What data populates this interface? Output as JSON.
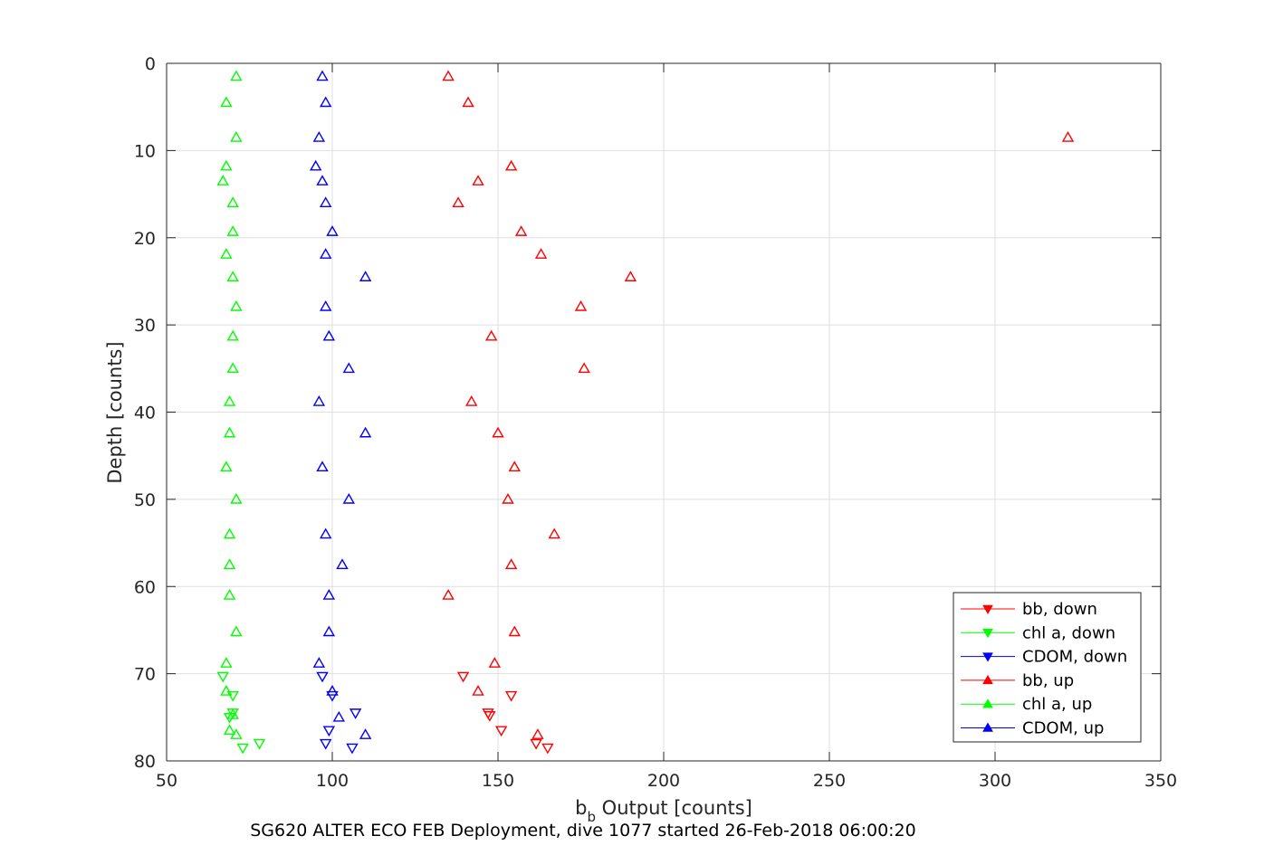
{
  "chart_data": {
    "type": "scatter",
    "xlabel_main": "b",
    "xlabel_sub": "b",
    "xlabel_rest": " Output [counts]",
    "ylabel": "Depth [counts]",
    "caption": "SG620 ALTER ECO FEB Deployment, dive 1077 started 26-Feb-2018 06:00:20",
    "xlim": [
      50,
      350
    ],
    "ylim": [
      0,
      80
    ],
    "y_reversed": true,
    "grid": true,
    "legend_position": "bottom-right",
    "x_ticks": [
      {
        "value": 50,
        "label": "50"
      },
      {
        "value": 100,
        "label": "100"
      },
      {
        "value": 150,
        "label": "150"
      },
      {
        "value": 200,
        "label": "200"
      },
      {
        "value": 250,
        "label": "250"
      },
      {
        "value": 300,
        "label": "300"
      },
      {
        "value": 350,
        "label": "350"
      }
    ],
    "y_ticks": [
      {
        "value": 0,
        "label": "0"
      },
      {
        "value": 10,
        "label": "10"
      },
      {
        "value": 20,
        "label": "20"
      },
      {
        "value": 30,
        "label": "30"
      },
      {
        "value": 40,
        "label": "40"
      },
      {
        "value": 50,
        "label": "50"
      },
      {
        "value": 60,
        "label": "60"
      },
      {
        "value": 70,
        "label": "70"
      },
      {
        "value": 80,
        "label": "80"
      }
    ],
    "series": [
      {
        "name": "bb, down",
        "color": "#ff0000",
        "marker": "triangle-down",
        "points": [
          [
            139.5,
            70.3
          ],
          [
            154,
            72.5
          ],
          [
            147.5,
            74.8
          ],
          [
            147,
            74.5
          ],
          [
            151,
            76.5
          ],
          [
            161.5,
            78
          ],
          [
            165,
            78.5
          ]
        ]
      },
      {
        "name": "chl a, down",
        "color": "#00ff00",
        "marker": "triangle-down",
        "points": [
          [
            67,
            70.3
          ],
          [
            70,
            72.5
          ],
          [
            70,
            74.5
          ],
          [
            69,
            75
          ],
          [
            78,
            78
          ],
          [
            73,
            78.5
          ]
        ]
      },
      {
        "name": "CDOM, down",
        "color": "#0000ff",
        "marker": "triangle-down",
        "points": [
          [
            97,
            70.3
          ],
          [
            100,
            72.5
          ],
          [
            107,
            74.5
          ],
          [
            99,
            76.5
          ],
          [
            98,
            78
          ],
          [
            106,
            78.5
          ]
        ]
      },
      {
        "name": "bb, up",
        "color": "#ff0000",
        "marker": "triangle-up",
        "points": [
          [
            135,
            1.5
          ],
          [
            141,
            4.5
          ],
          [
            322,
            8.5
          ],
          [
            154,
            11.8
          ],
          [
            144,
            13.5
          ],
          [
            138,
            16
          ],
          [
            157,
            19.3
          ],
          [
            163,
            21.9
          ],
          [
            190,
            24.5
          ],
          [
            175,
            27.9
          ],
          [
            148,
            31.3
          ],
          [
            176,
            35
          ],
          [
            142,
            38.8
          ],
          [
            150,
            42.4
          ],
          [
            155,
            46.3
          ],
          [
            153,
            50
          ],
          [
            167,
            54
          ],
          [
            154,
            57.5
          ],
          [
            135,
            61
          ],
          [
            155,
            65.2
          ],
          [
            149,
            68.8
          ],
          [
            144,
            72
          ],
          [
            162,
            77
          ]
        ]
      },
      {
        "name": "chl a, up",
        "color": "#00ff00",
        "marker": "triangle-up",
        "points": [
          [
            71,
            1.5
          ],
          [
            68,
            4.5
          ],
          [
            71,
            8.5
          ],
          [
            68,
            11.8
          ],
          [
            67,
            13.5
          ],
          [
            70,
            16
          ],
          [
            70,
            19.3
          ],
          [
            68,
            21.9
          ],
          [
            70,
            24.5
          ],
          [
            71,
            27.9
          ],
          [
            70,
            31.3
          ],
          [
            70,
            35
          ],
          [
            69,
            38.8
          ],
          [
            69,
            42.4
          ],
          [
            68,
            46.3
          ],
          [
            71,
            50
          ],
          [
            69,
            54
          ],
          [
            69,
            57.5
          ],
          [
            69,
            61
          ],
          [
            71,
            65.2
          ],
          [
            68,
            68.8
          ],
          [
            68,
            72
          ],
          [
            70,
            74.7
          ],
          [
            69,
            76.5
          ],
          [
            71,
            77
          ]
        ]
      },
      {
        "name": "CDOM, up",
        "color": "#0000ff",
        "marker": "triangle-up",
        "points": [
          [
            97,
            1.5
          ],
          [
            98,
            4.5
          ],
          [
            96,
            8.5
          ],
          [
            95,
            11.8
          ],
          [
            97,
            13.5
          ],
          [
            98,
            16
          ],
          [
            100,
            19.3
          ],
          [
            98,
            21.9
          ],
          [
            110,
            24.5
          ],
          [
            98,
            27.9
          ],
          [
            99,
            31.3
          ],
          [
            105,
            35
          ],
          [
            96,
            38.8
          ],
          [
            110,
            42.4
          ],
          [
            97,
            46.3
          ],
          [
            105,
            50
          ],
          [
            98,
            54
          ],
          [
            103,
            57.5
          ],
          [
            99,
            61
          ],
          [
            99,
            65.2
          ],
          [
            96,
            68.8
          ],
          [
            100,
            72
          ],
          [
            102,
            75
          ],
          [
            110,
            77
          ]
        ]
      }
    ]
  }
}
